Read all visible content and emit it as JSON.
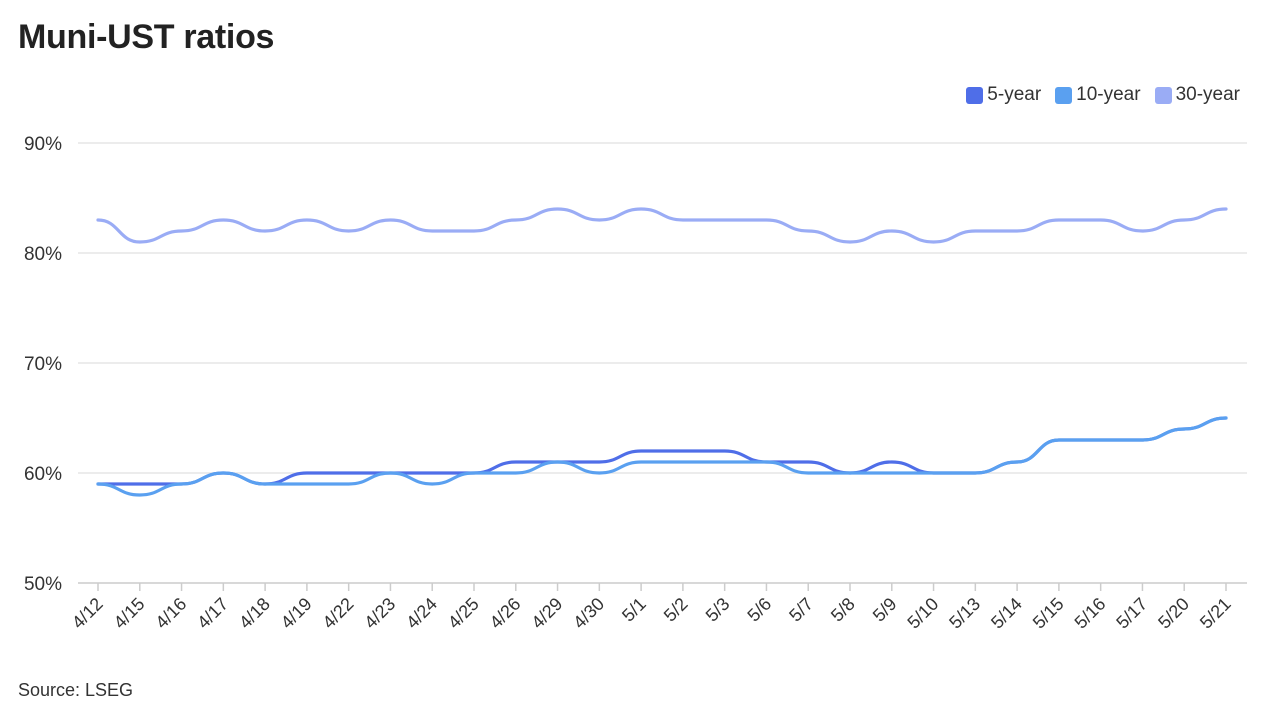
{
  "title": "Muni-UST ratios",
  "source": "Source: LSEG",
  "chart_data": {
    "type": "line",
    "title": "Muni-UST ratios",
    "x": [
      "4/12",
      "4/15",
      "4/16",
      "4/17",
      "4/18",
      "4/19",
      "4/22",
      "4/23",
      "4/24",
      "4/25",
      "4/26",
      "4/29",
      "4/30",
      "5/1",
      "5/2",
      "5/3",
      "5/6",
      "5/7",
      "5/8",
      "5/9",
      "5/10",
      "5/13",
      "5/14",
      "5/15",
      "5/16",
      "5/17",
      "5/20",
      "5/21"
    ],
    "ylim": [
      50,
      90
    ],
    "yticks": [
      "50%",
      "60%",
      "70%",
      "80%",
      "90%"
    ],
    "ytick_values": [
      50,
      60,
      70,
      80,
      90
    ],
    "grid": true,
    "legend": "top-right",
    "series": [
      {
        "name": "5-year",
        "color": "#4f6ee8",
        "values": [
          59,
          59,
          59,
          60,
          59,
          60,
          60,
          60,
          60,
          60,
          61,
          61,
          61,
          62,
          62,
          62,
          61,
          61,
          60,
          61,
          60,
          60,
          61,
          63,
          63,
          63,
          64,
          65
        ]
      },
      {
        "name": "10-year",
        "color": "#5aa0f0",
        "values": [
          59,
          58,
          59,
          60,
          59,
          59,
          59,
          60,
          59,
          60,
          60,
          61,
          60,
          61,
          61,
          61,
          61,
          60,
          60,
          60,
          60,
          60,
          61,
          63,
          63,
          63,
          64,
          65
        ]
      },
      {
        "name": "30-year",
        "color": "#9aacf5",
        "values": [
          83,
          81,
          82,
          83,
          82,
          83,
          82,
          83,
          82,
          82,
          83,
          84,
          83,
          84,
          83,
          83,
          83,
          82,
          81,
          82,
          81,
          82,
          82,
          83,
          83,
          82,
          83,
          84
        ]
      }
    ]
  }
}
